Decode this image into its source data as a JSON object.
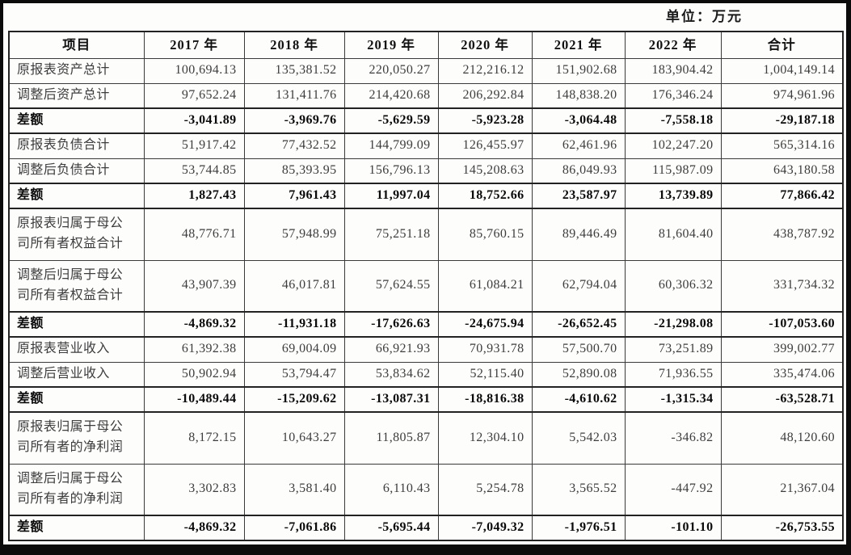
{
  "unit_label": "单位：万元",
  "table": {
    "columns": [
      "项目",
      "2017 年",
      "2018 年",
      "2019 年",
      "2020 年",
      "2021 年",
      "2022 年",
      "合计"
    ],
    "rows": [
      {
        "label": "原报表资产总计",
        "bold": false,
        "values": [
          "100,694.13",
          "135,381.52",
          "220,050.27",
          "212,216.12",
          "151,902.68",
          "183,904.42",
          "1,004,149.14"
        ]
      },
      {
        "label": "调整后资产总计",
        "bold": false,
        "values": [
          "97,652.24",
          "131,411.76",
          "214,420.68",
          "206,292.84",
          "148,838.20",
          "176,346.24",
          "974,961.96"
        ]
      },
      {
        "label": "差额",
        "bold": true,
        "values": [
          "-3,041.89",
          "-3,969.76",
          "-5,629.59",
          "-5,923.28",
          "-3,064.48",
          "-7,558.18",
          "-29,187.18"
        ]
      },
      {
        "label": "原报表负债合计",
        "bold": false,
        "values": [
          "51,917.42",
          "77,432.52",
          "144,799.09",
          "126,455.97",
          "62,461.96",
          "102,247.20",
          "565,314.16"
        ]
      },
      {
        "label": "调整后负债合计",
        "bold": false,
        "values": [
          "53,744.85",
          "85,393.95",
          "156,796.13",
          "145,208.63",
          "86,049.93",
          "115,987.09",
          "643,180.58"
        ]
      },
      {
        "label": "差额",
        "bold": true,
        "values": [
          "1,827.43",
          "7,961.43",
          "11,997.04",
          "18,752.66",
          "23,587.97",
          "13,739.89",
          "77,866.42"
        ]
      },
      {
        "label": "原报表归属于母公司所有者权益合计",
        "bold": false,
        "values": [
          "48,776.71",
          "57,948.99",
          "75,251.18",
          "85,760.15",
          "89,446.49",
          "81,604.40",
          "438,787.92"
        ]
      },
      {
        "label": "调整后归属于母公司所有者权益合计",
        "bold": false,
        "values": [
          "43,907.39",
          "46,017.81",
          "57,624.55",
          "61,084.21",
          "62,794.04",
          "60,306.32",
          "331,734.32"
        ]
      },
      {
        "label": "差额",
        "bold": true,
        "values": [
          "-4,869.32",
          "-11,931.18",
          "-17,626.63",
          "-24,675.94",
          "-26,652.45",
          "-21,298.08",
          "-107,053.60"
        ]
      },
      {
        "label": "原报表营业收入",
        "bold": false,
        "values": [
          "61,392.38",
          "69,004.09",
          "66,921.93",
          "70,931.78",
          "57,500.70",
          "73,251.89",
          "399,002.77"
        ]
      },
      {
        "label": "调整后营业收入",
        "bold": false,
        "values": [
          "50,902.94",
          "53,794.47",
          "53,834.62",
          "52,115.40",
          "52,890.08",
          "71,936.55",
          "335,474.06"
        ]
      },
      {
        "label": "差额",
        "bold": true,
        "values": [
          "-10,489.44",
          "-15,209.62",
          "-13,087.31",
          "-18,816.38",
          "-4,610.62",
          "-1,315.34",
          "-63,528.71"
        ]
      },
      {
        "label": "原报表归属于母公司所有者的净利润",
        "bold": false,
        "values": [
          "8,172.15",
          "10,643.27",
          "11,805.87",
          "12,304.10",
          "5,542.03",
          "-346.82",
          "48,120.60"
        ]
      },
      {
        "label": "调整后归属于母公司所有者的净利润",
        "bold": false,
        "values": [
          "3,302.83",
          "3,581.40",
          "6,110.43",
          "5,254.78",
          "3,565.52",
          "-447.92",
          "21,367.04"
        ]
      },
      {
        "label": "差额",
        "bold": true,
        "values": [
          "-4,869.32",
          "-7,061.86",
          "-5,695.44",
          "-7,049.32",
          "-1,976.51",
          "-101.10",
          "-26,753.55"
        ]
      }
    ]
  }
}
